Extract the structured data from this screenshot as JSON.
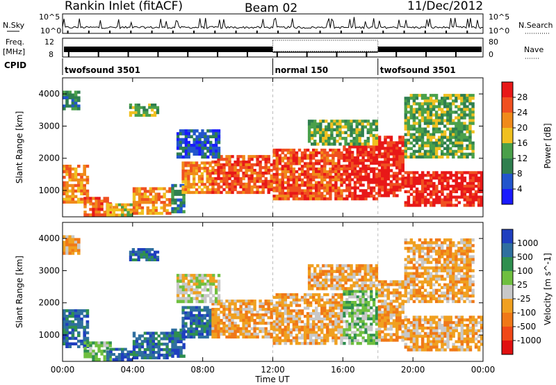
{
  "header": {
    "title": "Rankin Inlet (fitACF)",
    "beam": "Beam 02",
    "date": "11/Dec/2012"
  },
  "panels": {
    "nsky_label": "N.Sky",
    "nsearch_label": "N.Search",
    "freq_label_top": "Freq.",
    "freq_label_bottom": "[MHz]",
    "nave_label": "Nave",
    "cpid_label": "CPID",
    "noise_ticks_left": [
      "10^5",
      "10^0"
    ],
    "noise_ticks_right": [
      "10^5",
      "10^0"
    ],
    "freq_ticks": [
      "12",
      "8"
    ],
    "nave_ticks": [
      "80",
      "0"
    ]
  },
  "cpid_segments": [
    {
      "label": "twofsound 3501",
      "start_hour": 0
    },
    {
      "label": "normal 150",
      "start_hour": 12
    },
    {
      "label": "twofsound 3501",
      "start_hour": 18
    }
  ],
  "colors": {
    "power": [
      "#1a1aff",
      "#2255cc",
      "#2f7f4f",
      "#4aa04a",
      "#f0c020",
      "#f08a1a",
      "#f05020",
      "#e81818"
    ],
    "velocity": [
      "#1f3fbf",
      "#2f6f9f",
      "#2f8f4f",
      "#6fbf3f",
      "#c8c8c8",
      "#f0a020",
      "#f07818",
      "#f04818",
      "#e01010"
    ]
  },
  "chart_data": [
    {
      "type": "heatmap",
      "panel": "power",
      "title": "Rankin Inlet (fitACF)",
      "xlabel": "Time UT",
      "ylabel": "Slant Range [km]",
      "colorbar_label": "Power [dB]",
      "colorbar_ticks": [
        "28",
        "24",
        "20",
        "16",
        "12",
        "8",
        "4"
      ],
      "x_ticks": [
        "00:00",
        "04:00",
        "08:00",
        "12:00",
        "16:00",
        "20:00",
        "00:00"
      ],
      "y_ticks": [
        "1000",
        "2000",
        "3000",
        "4000"
      ],
      "xlim_hours": [
        0,
        24
      ],
      "ylim_km": [
        180,
        4500
      ],
      "clim_db": [
        0,
        32
      ],
      "regions": [
        {
          "t": [
            0.0,
            1.5
          ],
          "r": [
            600,
            1800
          ],
          "level": 22
        },
        {
          "t": [
            1.2,
            2.8
          ],
          "r": [
            200,
            800
          ],
          "level": 26
        },
        {
          "t": [
            2.5,
            4.0
          ],
          "r": [
            200,
            600
          ],
          "level": 18
        },
        {
          "t": [
            4.0,
            6.2
          ],
          "r": [
            250,
            1100
          ],
          "level": 20
        },
        {
          "t": [
            6.2,
            7.0
          ],
          "r": [
            300,
            1200
          ],
          "level": 8
        },
        {
          "t": [
            6.8,
            8.5
          ],
          "r": [
            900,
            1900
          ],
          "level": 22
        },
        {
          "t": [
            8.5,
            12.0
          ],
          "r": [
            900,
            2100
          ],
          "level": 24
        },
        {
          "t": [
            12.0,
            16.0
          ],
          "r": [
            700,
            2300
          ],
          "level": 26
        },
        {
          "t": [
            16.0,
            18.0
          ],
          "r": [
            700,
            2400
          ],
          "level": 28
        },
        {
          "t": [
            18.0,
            19.5
          ],
          "r": [
            800,
            2700
          ],
          "level": 30
        },
        {
          "t": [
            19.5,
            24.0
          ],
          "r": [
            500,
            1600
          ],
          "level": 28
        },
        {
          "t": [
            0.0,
            1.0
          ],
          "r": [
            3500,
            4100
          ],
          "level": 10
        },
        {
          "t": [
            3.8,
            5.5
          ],
          "r": [
            3300,
            3700
          ],
          "level": 14
        },
        {
          "t": [
            6.5,
            9.0
          ],
          "r": [
            2000,
            2900
          ],
          "level": 6
        },
        {
          "t": [
            14.0,
            18.0
          ],
          "r": [
            2400,
            3200
          ],
          "level": 14
        },
        {
          "t": [
            19.5,
            23.5
          ],
          "r": [
            2000,
            4000
          ],
          "level": 12
        }
      ]
    },
    {
      "type": "heatmap",
      "panel": "velocity",
      "xlabel": "Time UT",
      "ylabel": "Slant Range [km]",
      "colorbar_label": "Velocity [m s^-1]",
      "colorbar_ticks": [
        "1000",
        "500",
        "100",
        "25",
        "-25",
        "-100",
        "-500",
        "-1000"
      ],
      "x_ticks": [
        "00:00",
        "04:00",
        "08:00",
        "12:00",
        "16:00",
        "20:00",
        "00:00"
      ],
      "y_ticks": [
        "1000",
        "2000",
        "3000",
        "4000"
      ],
      "xlim_hours": [
        0,
        24
      ],
      "ylim_km": [
        180,
        4500
      ],
      "clim_ms": [
        -1000,
        1000
      ],
      "regions": [
        {
          "t": [
            0.0,
            1.5
          ],
          "r": [
            600,
            1800
          ],
          "level": 120
        },
        {
          "t": [
            1.2,
            2.8
          ],
          "r": [
            200,
            800
          ],
          "level": 0
        },
        {
          "t": [
            2.5,
            4.0
          ],
          "r": [
            200,
            600
          ],
          "level": 150
        },
        {
          "t": [
            4.0,
            6.2
          ],
          "r": [
            250,
            1100
          ],
          "level": 300
        },
        {
          "t": [
            6.2,
            7.0
          ],
          "r": [
            300,
            1200
          ],
          "level": 400
        },
        {
          "t": [
            6.8,
            8.5
          ],
          "r": [
            900,
            1900
          ],
          "level": 120
        },
        {
          "t": [
            8.5,
            12.0
          ],
          "r": [
            900,
            2100
          ],
          "level": -150
        },
        {
          "t": [
            12.0,
            16.0
          ],
          "r": [
            700,
            2300
          ],
          "level": -200
        },
        {
          "t": [
            16.0,
            18.0
          ],
          "r": [
            700,
            2400
          ],
          "level": -10
        },
        {
          "t": [
            18.0,
            19.5
          ],
          "r": [
            800,
            2700
          ],
          "level": -450
        },
        {
          "t": [
            19.5,
            24.0
          ],
          "r": [
            500,
            1600
          ],
          "level": -300
        },
        {
          "t": [
            0.0,
            1.0
          ],
          "r": [
            3500,
            4100
          ],
          "level": -150
        },
        {
          "t": [
            3.8,
            5.5
          ],
          "r": [
            3300,
            3700
          ],
          "level": 250
        },
        {
          "t": [
            6.5,
            9.0
          ],
          "r": [
            2000,
            2900
          ],
          "level": -100
        },
        {
          "t": [
            14.0,
            18.0
          ],
          "r": [
            2400,
            3200
          ],
          "level": -150
        },
        {
          "t": [
            19.5,
            23.5
          ],
          "r": [
            2000,
            4000
          ],
          "level": -200
        }
      ]
    }
  ]
}
